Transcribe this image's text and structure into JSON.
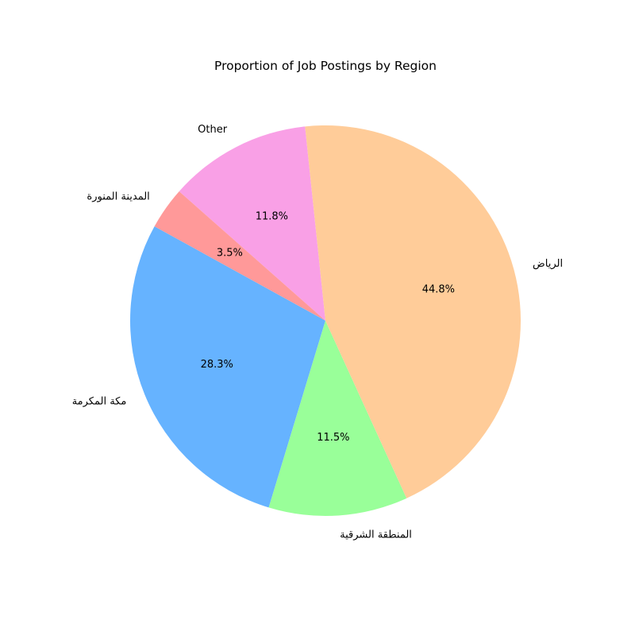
{
  "chart_data": {
    "type": "pie",
    "title": "Proportion of Job Postings by Region",
    "start_angle_deg": 96,
    "direction": "counterclockwise",
    "slices": [
      {
        "label": "Other",
        "value": 11.8,
        "pct_label": "11.8%",
        "color": "#f9a0e6"
      },
      {
        "label": "المدينة المنورة",
        "value": 3.5,
        "pct_label": "3.5%",
        "color": "#ff9999"
      },
      {
        "label": "مكة المكرمة",
        "value": 28.3,
        "pct_label": "28.3%",
        "color": "#66b3ff"
      },
      {
        "label": "المنطقة الشرقية",
        "value": 11.5,
        "pct_label": "11.5%",
        "color": "#99ff99"
      },
      {
        "label": "الرياض",
        "value": 44.8,
        "pct_label": "44.8%",
        "color": "#ffcc99"
      }
    ]
  }
}
